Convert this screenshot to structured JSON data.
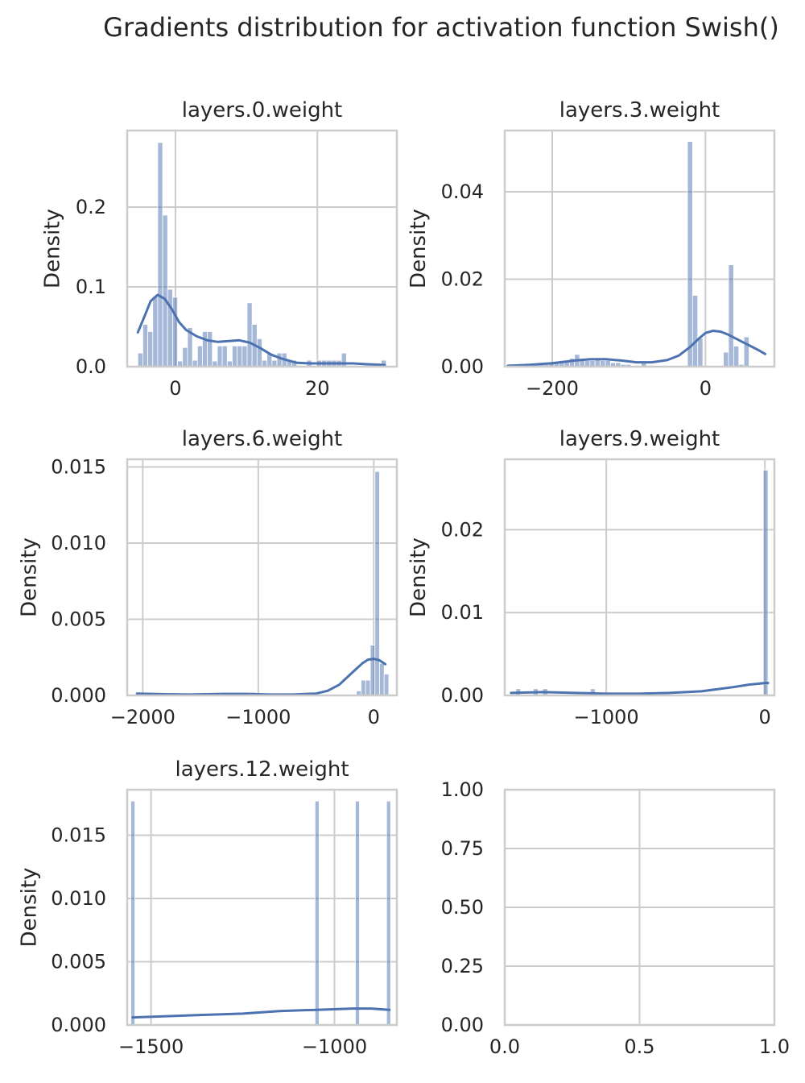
{
  "figure": {
    "title": "Gradients distribution for activation function Swish()",
    "colors": {
      "bar": "#4c72b0",
      "kde": "#4c72b0",
      "grid": "#cccccc",
      "spine": "#cccccc",
      "text": "#262626"
    }
  },
  "chart_data": [
    {
      "type": "bar",
      "title": "layers.0.weight",
      "xlabel": "",
      "ylabel": "Density",
      "xlim": [
        -6.8,
        31.2
      ],
      "ylim": [
        0,
        0.296
      ],
      "xticks": [
        {
          "v": 0,
          "label": "0"
        },
        {
          "v": 20,
          "label": "20"
        }
      ],
      "yticks": [
        {
          "v": 0,
          "label": "0.0"
        },
        {
          "v": 0.1,
          "label": "0.1"
        },
        {
          "v": 0.2,
          "label": "0.2"
        }
      ],
      "bins": {
        "start": -5.3,
        "width": 0.7,
        "density": [
          0.017,
          0.053,
          0.044,
          0.088,
          0.281,
          0.19,
          0.097,
          0.087,
          0.007,
          0.024,
          0.049,
          0.008,
          0.026,
          0.044,
          0.044,
          0.007,
          0.026,
          0.026,
          0.007,
          0.026,
          0.026,
          0.026,
          0.08,
          0.053,
          0.035,
          0.008,
          0.017,
          0.008,
          0.017,
          0.017,
          0.008,
          0.008,
          0,
          0,
          0.008,
          0,
          0.008,
          0.008,
          0.008,
          0.008,
          0.008,
          0.017,
          0,
          0,
          0,
          0,
          0,
          0,
          0,
          0.008
        ]
      },
      "kde": {
        "x": [
          -5.3,
          -4.5,
          -3.5,
          -2.5,
          -1.5,
          -0.5,
          0.5,
          1.5,
          3,
          4.5,
          6,
          7.5,
          9,
          10.5,
          12,
          13.5,
          15,
          17,
          19,
          21,
          23,
          25,
          27,
          29.5
        ],
        "y": [
          0.043,
          0.06,
          0.082,
          0.09,
          0.085,
          0.072,
          0.056,
          0.046,
          0.038,
          0.033,
          0.031,
          0.032,
          0.033,
          0.03,
          0.023,
          0.015,
          0.01,
          0.005,
          0.004,
          0.004,
          0.004,
          0.004,
          0.003,
          0.002
        ]
      }
    },
    {
      "type": "bar",
      "title": "layers.3.weight",
      "xlabel": "",
      "ylabel": "Density",
      "xlim": [
        -262,
        90
      ],
      "ylim": [
        0,
        0.054
      ],
      "xticks": [
        {
          "v": -200,
          "label": "−200"
        },
        {
          "v": 0,
          "label": "0"
        }
      ],
      "yticks": [
        {
          "v": 0,
          "label": "0.00"
        },
        {
          "v": 0.02,
          "label": "0.02"
        },
        {
          "v": 0.04,
          "label": "0.04"
        }
      ],
      "bins": {
        "start": -258,
        "width": 6.7,
        "density": [
          0.0005,
          0.0005,
          0.0005,
          0,
          0.0005,
          0.0005,
          0.0005,
          0.0005,
          0.0009,
          0.0009,
          0.0014,
          0.0014,
          0.0019,
          0.0028,
          0.0019,
          0.0014,
          0.0014,
          0.0019,
          0.0014,
          0.0014,
          0.0009,
          0.0009,
          0.0005,
          0.0005,
          0,
          0,
          0.0009,
          0,
          0,
          0,
          0,
          0,
          0,
          0,
          0,
          0.0515,
          0.0163,
          0.0065,
          0,
          0,
          0,
          0,
          0.0033,
          0.0233,
          0.0047,
          0.0005,
          0.0068
        ]
      },
      "kde": {
        "x": [
          -258,
          -230,
          -200,
          -170,
          -150,
          -130,
          -110,
          -90,
          -70,
          -50,
          -35,
          -20,
          -10,
          0,
          10,
          20,
          30,
          40,
          50,
          60,
          70,
          78
        ],
        "y": [
          0.0002,
          0.0004,
          0.0008,
          0.0014,
          0.0017,
          0.0017,
          0.0014,
          0.001,
          0.001,
          0.0015,
          0.0025,
          0.0045,
          0.0062,
          0.0077,
          0.0082,
          0.008,
          0.0073,
          0.0064,
          0.0055,
          0.0046,
          0.0037,
          0.0029
        ]
      }
    },
    {
      "type": "bar",
      "title": "layers.6.weight",
      "xlabel": "",
      "ylabel": "Density",
      "xlim": [
        -2135,
        200
      ],
      "ylim": [
        0,
        0.0155
      ],
      "xticks": [
        {
          "v": -2000,
          "label": "−2000"
        },
        {
          "v": -1000,
          "label": "−1000"
        },
        {
          "v": 0,
          "label": "0"
        }
      ],
      "yticks": [
        {
          "v": 0,
          "label": "0.000"
        },
        {
          "v": 0.005,
          "label": "0.005"
        },
        {
          "v": 0.01,
          "label": "0.010"
        },
        {
          "v": 0.015,
          "label": "0.015"
        }
      ],
      "bins": [
        {
          "x0": -2050,
          "x1": -2010,
          "d": 0.0002
        },
        {
          "x0": -1310,
          "x1": -1270,
          "d": 0.0002
        },
        {
          "x0": -1190,
          "x1": -1150,
          "d": 0.0002
        },
        {
          "x0": -1060,
          "x1": -1020,
          "d": 0.0002
        },
        {
          "x0": -150,
          "x1": -110,
          "d": 0.0003
        },
        {
          "x0": -110,
          "x1": -70,
          "d": 0.001
        },
        {
          "x0": -70,
          "x1": -30,
          "d": 0.001
        },
        {
          "x0": -30,
          "x1": 10,
          "d": 0.0033
        },
        {
          "x0": 10,
          "x1": 50,
          "d": 0.0147
        },
        {
          "x0": 50,
          "x1": 90,
          "d": 0.0021
        },
        {
          "x0": 90,
          "x1": 130,
          "d": 0.0014
        }
      ],
      "kde": {
        "x": [
          -2050,
          -1800,
          -1600,
          -1300,
          -1100,
          -900,
          -700,
          -500,
          -400,
          -300,
          -200,
          -100,
          -50,
          0,
          50,
          100
        ],
        "y": [
          0.00012,
          8e-05,
          6e-05,
          0.0001,
          0.0001,
          6e-05,
          6e-05,
          0.00012,
          0.0003,
          0.0007,
          0.0014,
          0.0021,
          0.00235,
          0.0024,
          0.0023,
          0.00205
        ]
      }
    },
    {
      "type": "bar",
      "title": "layers.9.weight",
      "xlabel": "",
      "ylabel": "Density",
      "xlim": [
        -1640,
        60
      ],
      "ylim": [
        0,
        0.0285
      ],
      "xticks": [
        {
          "v": -1000,
          "label": "−1000"
        },
        {
          "v": 0,
          "label": "0"
        }
      ],
      "yticks": [
        {
          "v": 0,
          "label": "0.00"
        },
        {
          "v": 0.01,
          "label": "0.01"
        },
        {
          "v": 0.02,
          "label": "0.02"
        }
      ],
      "bins": [
        {
          "x0": -1570,
          "x1": -1540,
          "d": 0.0008
        },
        {
          "x0": -1460,
          "x1": -1430,
          "d": 0.0008
        },
        {
          "x0": -1400,
          "x1": -1370,
          "d": 0.0008
        },
        {
          "x0": -1100,
          "x1": -1070,
          "d": 0.0008
        },
        {
          "x0": -10,
          "x1": 20,
          "d": 0.0272
        }
      ],
      "kde": {
        "x": [
          -1600,
          -1400,
          -1200,
          -1000,
          -800,
          -600,
          -400,
          -200,
          -100,
          0,
          20
        ],
        "y": [
          0.0003,
          0.0004,
          0.0003,
          0.0002,
          0.0002,
          0.0003,
          0.0005,
          0.001,
          0.0013,
          0.0015,
          0.0015
        ]
      }
    },
    {
      "type": "bar",
      "title": "layers.12.weight",
      "xlabel": "",
      "ylabel": "Density",
      "xlim": [
        -1565,
        -830
      ],
      "ylim": [
        0,
        0.0186
      ],
      "xticks": [
        {
          "v": -1500,
          "label": "−1500"
        },
        {
          "v": -1000,
          "label": "−1000"
        }
      ],
      "yticks": [
        {
          "v": 0,
          "label": "0.000"
        },
        {
          "v": 0.005,
          "label": "0.005"
        },
        {
          "v": 0.01,
          "label": "0.010"
        },
        {
          "v": 0.015,
          "label": "0.015"
        }
      ],
      "bins": [
        {
          "x0": -1555,
          "x1": -1544,
          "d": 0.0177
        },
        {
          "x0": -1053,
          "x1": -1042,
          "d": 0.0177
        },
        {
          "x0": -943,
          "x1": -932,
          "d": 0.0177
        },
        {
          "x0": -858,
          "x1": -847,
          "d": 0.0177
        }
      ],
      "kde": {
        "x": [
          -1550,
          -1450,
          -1350,
          -1250,
          -1150,
          -1050,
          -950,
          -900,
          -850
        ],
        "y": [
          0.0006,
          0.0007,
          0.0008,
          0.0009,
          0.0011,
          0.0012,
          0.0013,
          0.0013,
          0.0012
        ]
      }
    },
    {
      "type": "scatter",
      "title": "",
      "xlabel": "",
      "ylabel": "",
      "xlim": [
        0,
        1
      ],
      "ylim": [
        0,
        1
      ],
      "xticks": [
        {
          "v": 0,
          "label": "0.0"
        },
        {
          "v": 0.5,
          "label": "0.5"
        },
        {
          "v": 1,
          "label": "1.0"
        }
      ],
      "yticks": [
        {
          "v": 0,
          "label": "0.00"
        },
        {
          "v": 0.25,
          "label": "0.25"
        },
        {
          "v": 0.5,
          "label": "0.50"
        },
        {
          "v": 0.75,
          "label": "0.75"
        },
        {
          "v": 1,
          "label": "1.00"
        }
      ]
    }
  ]
}
